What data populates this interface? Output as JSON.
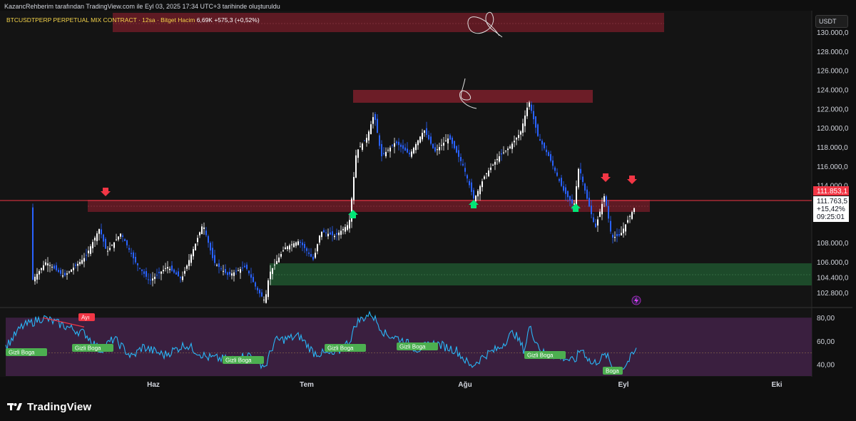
{
  "header": {
    "text": "KazancRehberim tarafından TradingView.com ile Eyl 03, 2025 17:34 UTC+3 tarihinde oluşturuldu"
  },
  "legend": {
    "symbol": "BTCUSDTPERP PERPETUAL MIX CONTRACT · 12sa · Bitget",
    "volume_label": "Hacim",
    "volume_value": "6,69K",
    "change": "+575,3 (+0,52%)"
  },
  "currency": "USDT",
  "price_axis": {
    "ticks": [
      "130.000,0",
      "128.000,0",
      "126.000,0",
      "124.000,0",
      "122.000,0",
      "120.000,0",
      "118.000,0",
      "116.000,0",
      "114.000,0",
      "108.000,0",
      "106.000,0",
      "104.400,0",
      "102.800,0"
    ],
    "tick_values": [
      130000,
      128000,
      126000,
      124000,
      122000,
      120000,
      118000,
      116000,
      114000,
      108000,
      106000,
      104400,
      102800
    ]
  },
  "price_label_top": "111.853,1",
  "price_box": {
    "price": "111.763,5",
    "change": "+15,42%",
    "countdown": "09:25:01"
  },
  "time_axis": [
    "Haz",
    "Tem",
    "Ağu",
    "Eyl",
    "Eki"
  ],
  "rsi": {
    "ticks": [
      "80,00",
      "60,00",
      "40,00"
    ],
    "tick_values": [
      80,
      60,
      40
    ],
    "labels": [
      {
        "text": "Ayı",
        "color": "#f23645"
      },
      {
        "text": "Gizli Boga",
        "color": "#4caf50"
      },
      {
        "text": "Gizli Boga",
        "color": "#4caf50"
      },
      {
        "text": "Gizli Boga",
        "color": "#4caf50"
      },
      {
        "text": "Gizli Boga",
        "color": "#4caf50"
      },
      {
        "text": "Gizli Boga",
        "color": "#4caf50"
      },
      {
        "text": "Gizli Boga",
        "color": "#4caf50"
      },
      {
        "text": "Boga",
        "color": "#4caf50"
      }
    ]
  },
  "footer": {
    "brand": "TradingView"
  },
  "colors": {
    "up": "#ffffff",
    "down": "#2962ff",
    "resistance": "#7b1e2a",
    "support": "#1d4d2b",
    "rsi_line": "#29b6f6",
    "rsi_bg": "#3a1f3f",
    "arrow_up": "#00e676",
    "arrow_down": "#f23645"
  },
  "chart_data": {
    "type": "candlestick",
    "ylim": [
      101800,
      131500
    ],
    "y_unit": "USDT",
    "rsi_ylim": [
      30,
      85
    ]
  }
}
